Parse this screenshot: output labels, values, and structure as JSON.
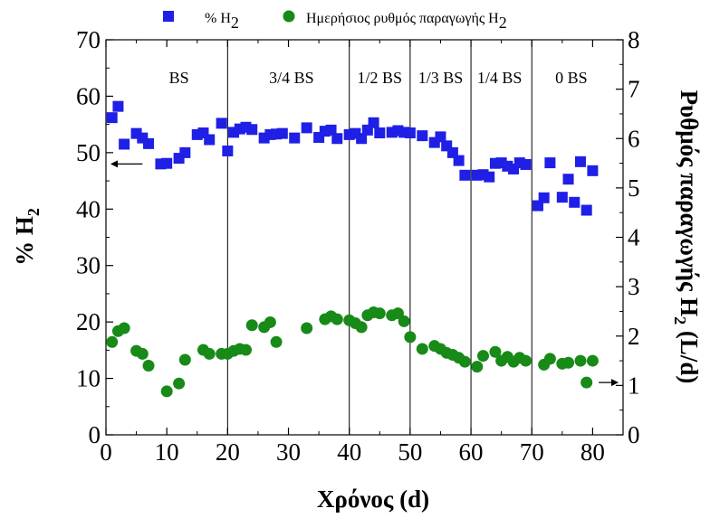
{
  "chart_data": {
    "type": "scatter",
    "x_axis": {
      "label": "Χρόνος (d)",
      "range": [
        0,
        85
      ],
      "ticks": [
        0,
        10,
        20,
        30,
        40,
        50,
        60,
        70,
        80
      ]
    },
    "y_axis_left": {
      "label": "% H",
      "label_sub": "2",
      "range": [
        0,
        70
      ],
      "ticks": [
        0,
        10,
        20,
        30,
        40,
        50,
        60,
        70
      ]
    },
    "y_axis_right": {
      "label": "Ρυθμός παραγωγής H",
      "label_sub": "2",
      "label_suffix": " (L/d)",
      "range": [
        0,
        8
      ],
      "ticks": [
        0,
        1,
        2,
        3,
        4,
        5,
        6,
        7,
        8
      ]
    },
    "legend": {
      "placement": "top",
      "entries": [
        {
          "marker": "square",
          "color": "#1f1fe6",
          "text": "% H",
          "sub": "2"
        },
        {
          "marker": "circle",
          "color": "#178a17",
          "text": "Ημερήσιος ρυθμός παραγωγής H",
          "sub": "2"
        }
      ]
    },
    "phase_lines": [
      20,
      40,
      50,
      60,
      70
    ],
    "phases": [
      {
        "label": "BS",
        "x": 12
      },
      {
        "label": "3/4 BS",
        "x": 30.5
      },
      {
        "label": "1/2 BS",
        "x": 45
      },
      {
        "label": "1/3 BS",
        "x": 55
      },
      {
        "label": "1/4 BS",
        "x": 64.7
      },
      {
        "label": "0 BS",
        "x": 76.5
      }
    ],
    "series": [
      {
        "name": "% H2",
        "axis": "left",
        "marker": "square",
        "color": "#1f1fe6",
        "points": [
          [
            1,
            56.2
          ],
          [
            2,
            58.2
          ],
          [
            3,
            51.5
          ],
          [
            5,
            53.4
          ],
          [
            6,
            52.6
          ],
          [
            7,
            51.6
          ],
          [
            9,
            48.0
          ],
          [
            10,
            48.1
          ],
          [
            12,
            49.0
          ],
          [
            13,
            50.0
          ],
          [
            15,
            53.2
          ],
          [
            16,
            53.5
          ],
          [
            17,
            52.3
          ],
          [
            19,
            55.2
          ],
          [
            20,
            50.3
          ],
          [
            21,
            53.6
          ],
          [
            22,
            54.2
          ],
          [
            23,
            54.5
          ],
          [
            24,
            54.1
          ],
          [
            26,
            52.6
          ],
          [
            27,
            53.2
          ],
          [
            28,
            53.3
          ],
          [
            29,
            53.4
          ],
          [
            31,
            52.6
          ],
          [
            33,
            54.4
          ],
          [
            35,
            52.7
          ],
          [
            36,
            53.8
          ],
          [
            37,
            54.0
          ],
          [
            38,
            52.5
          ],
          [
            40,
            53.2
          ],
          [
            41,
            53.4
          ],
          [
            42,
            52.5
          ],
          [
            43,
            54.0
          ],
          [
            44,
            55.3
          ],
          [
            45,
            53.5
          ],
          [
            47,
            53.6
          ],
          [
            48,
            53.9
          ],
          [
            49,
            53.6
          ],
          [
            50,
            53.5
          ],
          [
            52,
            53.0
          ],
          [
            54,
            51.8
          ],
          [
            55,
            52.8
          ],
          [
            56,
            51.2
          ],
          [
            57,
            50.0
          ],
          [
            58,
            48.6
          ],
          [
            59,
            46.0
          ],
          [
            61,
            46.0
          ],
          [
            62,
            46.1
          ],
          [
            63,
            45.7
          ],
          [
            64,
            48.1
          ],
          [
            65,
            48.2
          ],
          [
            66,
            47.6
          ],
          [
            67,
            47.1
          ],
          [
            68,
            48.2
          ],
          [
            69,
            47.9
          ],
          [
            71,
            40.6
          ],
          [
            72,
            42.0
          ],
          [
            73,
            48.2
          ],
          [
            75,
            42.1
          ],
          [
            76,
            45.3
          ],
          [
            77,
            41.2
          ],
          [
            78,
            48.4
          ],
          [
            79,
            39.8
          ],
          [
            80,
            46.8
          ]
        ]
      },
      {
        "name": "Ημερήσιος ρυθμός παραγωγής H2",
        "axis": "right",
        "marker": "circle",
        "color": "#178a17",
        "points": [
          [
            1,
            1.88
          ],
          [
            2,
            2.1
          ],
          [
            3,
            2.16
          ],
          [
            5,
            1.7
          ],
          [
            6,
            1.64
          ],
          [
            7,
            1.4
          ],
          [
            10,
            0.88
          ],
          [
            12,
            1.04
          ],
          [
            13,
            1.52
          ],
          [
            16,
            1.72
          ],
          [
            17,
            1.64
          ],
          [
            19,
            1.64
          ],
          [
            20,
            1.64
          ],
          [
            21,
            1.7
          ],
          [
            22,
            1.74
          ],
          [
            23,
            1.72
          ],
          [
            24,
            2.22
          ],
          [
            26,
            2.18
          ],
          [
            27,
            2.28
          ],
          [
            28,
            1.88
          ],
          [
            33,
            2.16
          ],
          [
            36,
            2.34
          ],
          [
            37,
            2.4
          ],
          [
            38,
            2.34
          ],
          [
            40,
            2.32
          ],
          [
            41,
            2.26
          ],
          [
            42,
            2.18
          ],
          [
            43,
            2.42
          ],
          [
            44,
            2.48
          ],
          [
            45,
            2.46
          ],
          [
            47,
            2.42
          ],
          [
            48,
            2.46
          ],
          [
            49,
            2.3
          ],
          [
            50,
            1.98
          ],
          [
            52,
            1.74
          ],
          [
            54,
            1.8
          ],
          [
            55,
            1.74
          ],
          [
            56,
            1.66
          ],
          [
            57,
            1.62
          ],
          [
            58,
            1.56
          ],
          [
            59,
            1.48
          ],
          [
            61,
            1.38
          ],
          [
            62,
            1.6
          ],
          [
            64,
            1.68
          ],
          [
            65,
            1.5
          ],
          [
            66,
            1.58
          ],
          [
            67,
            1.48
          ],
          [
            68,
            1.56
          ],
          [
            69,
            1.5
          ],
          [
            72,
            1.42
          ],
          [
            73,
            1.54
          ],
          [
            75,
            1.44
          ],
          [
            76,
            1.46
          ],
          [
            78,
            1.5
          ],
          [
            79,
            1.06
          ],
          [
            80,
            1.5
          ]
        ]
      }
    ],
    "annotations": [
      {
        "type": "arrow",
        "points_to": "left-axis",
        "x": 6,
        "y_left": 48
      },
      {
        "type": "arrow",
        "points_to": "right-axis",
        "x": 81,
        "y_right": 1.06
      }
    ]
  }
}
